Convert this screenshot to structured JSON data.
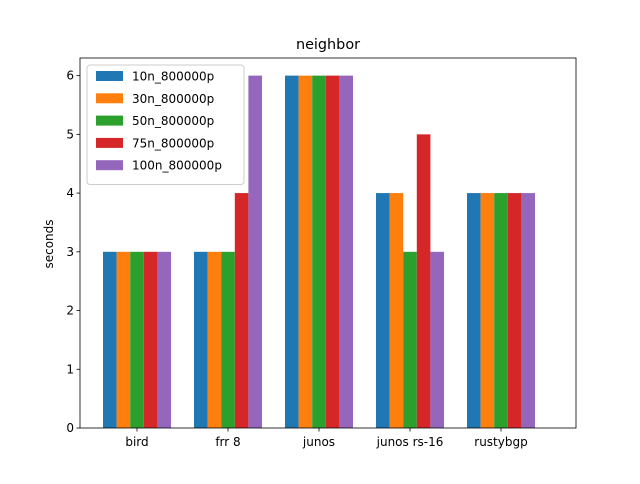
{
  "chart_data": {
    "type": "bar",
    "title": "neighbor",
    "xlabel": "",
    "ylabel": "seconds",
    "ylim": [
      0,
      6.3
    ],
    "yticks": [
      0,
      1,
      2,
      3,
      4,
      5,
      6
    ],
    "grid": false,
    "legend_position": "top-left",
    "categories": [
      "bird",
      "frr 8",
      "junos",
      "junos rs-16",
      "rustybgp"
    ],
    "series": [
      {
        "name": "10n_800000p",
        "color": "#1f77b4",
        "values": [
          3,
          3,
          6,
          4,
          4
        ]
      },
      {
        "name": "30n_800000p",
        "color": "#ff7f0e",
        "values": [
          3,
          3,
          6,
          4,
          4
        ]
      },
      {
        "name": "50n_800000p",
        "color": "#2ca02c",
        "values": [
          3,
          3,
          6,
          3,
          4
        ]
      },
      {
        "name": "75n_800000p",
        "color": "#d62728",
        "values": [
          3,
          4,
          6,
          5,
          4
        ]
      },
      {
        "name": "100n_800000p",
        "color": "#9467bd",
        "values": [
          3,
          6,
          6,
          3,
          4
        ]
      }
    ]
  }
}
